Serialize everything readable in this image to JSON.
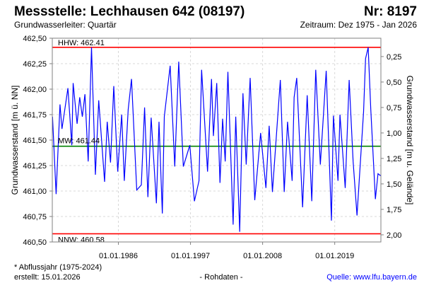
{
  "header": {
    "title": "Messstelle: Lechhausen 642 (08197)",
    "number": "Nr: 8197",
    "aquifer": "Grundwasserleiter: Quartär",
    "period": "Zeitraum: Dez 1975 - Jan 2026"
  },
  "footer": {
    "note": "* Abflussjahr (1975-2024)",
    "created": "erstellt:  15.01.2026",
    "rawdata": "- Rohdaten -",
    "source": "Quelle: www.lfu.bayern.de"
  },
  "colors": {
    "series": "#0000ff",
    "limits": "#ff0000",
    "mean": "#008000",
    "source": "#0000ff"
  },
  "chart_data": {
    "type": "line",
    "ylabel": "Grundwasserstand [m ü. NN]",
    "ylabel_right": "Grundwasserstand [m u. Gelände]",
    "ylim": [
      460.5,
      462.5
    ],
    "xlim": [
      1975.92,
      2026.04
    ],
    "ground_level": 462.57,
    "yticks": [
      "462,50",
      "462,25",
      "462,00",
      "461,75",
      "461,50",
      "461,25",
      "461,00",
      "460,75",
      "460,50"
    ],
    "ytick_values": [
      462.5,
      462.25,
      462.0,
      461.75,
      461.5,
      461.25,
      461.0,
      460.75,
      460.5
    ],
    "yticks_right": [
      "0,25",
      "0,50",
      "0,75",
      "1,00",
      "1,25",
      "1,50",
      "1,75",
      "2,00"
    ],
    "ytick_right_values": [
      0.25,
      0.5,
      0.75,
      1.0,
      1.25,
      1.5,
      1.75,
      2.0
    ],
    "xticks": [
      "01.01.1986",
      "01.01.1997",
      "01.01.2008",
      "01.01.2019"
    ],
    "xtick_values": [
      1986.0,
      1997.0,
      2008.0,
      2019.0
    ],
    "grid": true,
    "reference_lines": [
      {
        "label": "HHW: 462.41",
        "value": 462.41,
        "kind": "limit"
      },
      {
        "label": "MW: 461.44",
        "value": 461.44,
        "kind": "mean"
      },
      {
        "label": "NNW: 460.58",
        "value": 460.58,
        "kind": "limit"
      }
    ],
    "series": [
      {
        "name": "Grundwasserstand",
        "x": [
          1975.95,
          1976.5,
          1977.1,
          1977.4,
          1978.3,
          1978.9,
          1979.1,
          1979.7,
          1980.1,
          1980.5,
          1980.9,
          1981.4,
          1981.9,
          1982.5,
          1983.0,
          1983.9,
          1984.3,
          1984.8,
          1985.3,
          1985.9,
          1986.5,
          1986.9,
          1987.5,
          1988.0,
          1988.8,
          1989.5,
          1990.0,
          1990.5,
          1991.0,
          1991.8,
          1992.2,
          1992.7,
          1993.0,
          1993.9,
          1994.6,
          1995.2,
          1995.9,
          1996.9,
          1997.6,
          1998.3,
          1998.7,
          1999.6,
          2000.2,
          2000.5,
          2001.0,
          2001.5,
          2001.9,
          2002.3,
          2002.7,
          2003.5,
          2003.9,
          2004.5,
          2005.0,
          2005.5,
          2006.1,
          2006.8,
          2007.7,
          2008.5,
          2009.0,
          2009.5,
          2010.3,
          2010.7,
          2011.3,
          2011.8,
          2012.5,
          2012.8,
          2013.2,
          2014.1,
          2014.8,
          2015.5,
          2016.1,
          2016.8,
          2017.7,
          2018.5,
          2018.8,
          2019.5,
          2019.8,
          2020.6,
          2021.2,
          2021.8,
          2022.4,
          2023.4,
          2023.7,
          2024.1,
          2024.5,
          2025.2,
          2025.6,
          2026.0
        ],
        "values": [
          461.73,
          460.97,
          461.85,
          461.61,
          462.01,
          461.45,
          462.06,
          461.66,
          461.92,
          461.73,
          461.95,
          461.29,
          462.41,
          461.16,
          461.89,
          461.09,
          461.68,
          461.28,
          462.03,
          461.19,
          461.75,
          461.1,
          461.8,
          462.1,
          461.01,
          461.06,
          461.82,
          460.94,
          461.72,
          460.88,
          461.68,
          460.78,
          461.73,
          462.23,
          461.24,
          462.27,
          461.24,
          461.45,
          460.9,
          461.1,
          462.19,
          461.19,
          462.1,
          461.54,
          462.06,
          461.08,
          461.71,
          461.29,
          462.17,
          460.67,
          461.73,
          460.6,
          461.96,
          461.26,
          462.11,
          460.91,
          461.57,
          461.03,
          461.64,
          460.99,
          461.73,
          462.09,
          460.99,
          461.68,
          461.1,
          461.92,
          462.11,
          460.84,
          461.94,
          460.9,
          462.19,
          461.26,
          462.18,
          460.71,
          461.74,
          461.1,
          461.75,
          461.03,
          462.09,
          461.29,
          460.76,
          461.78,
          462.3,
          462.41,
          461.8,
          460.92,
          461.17,
          461.15
        ]
      }
    ]
  }
}
